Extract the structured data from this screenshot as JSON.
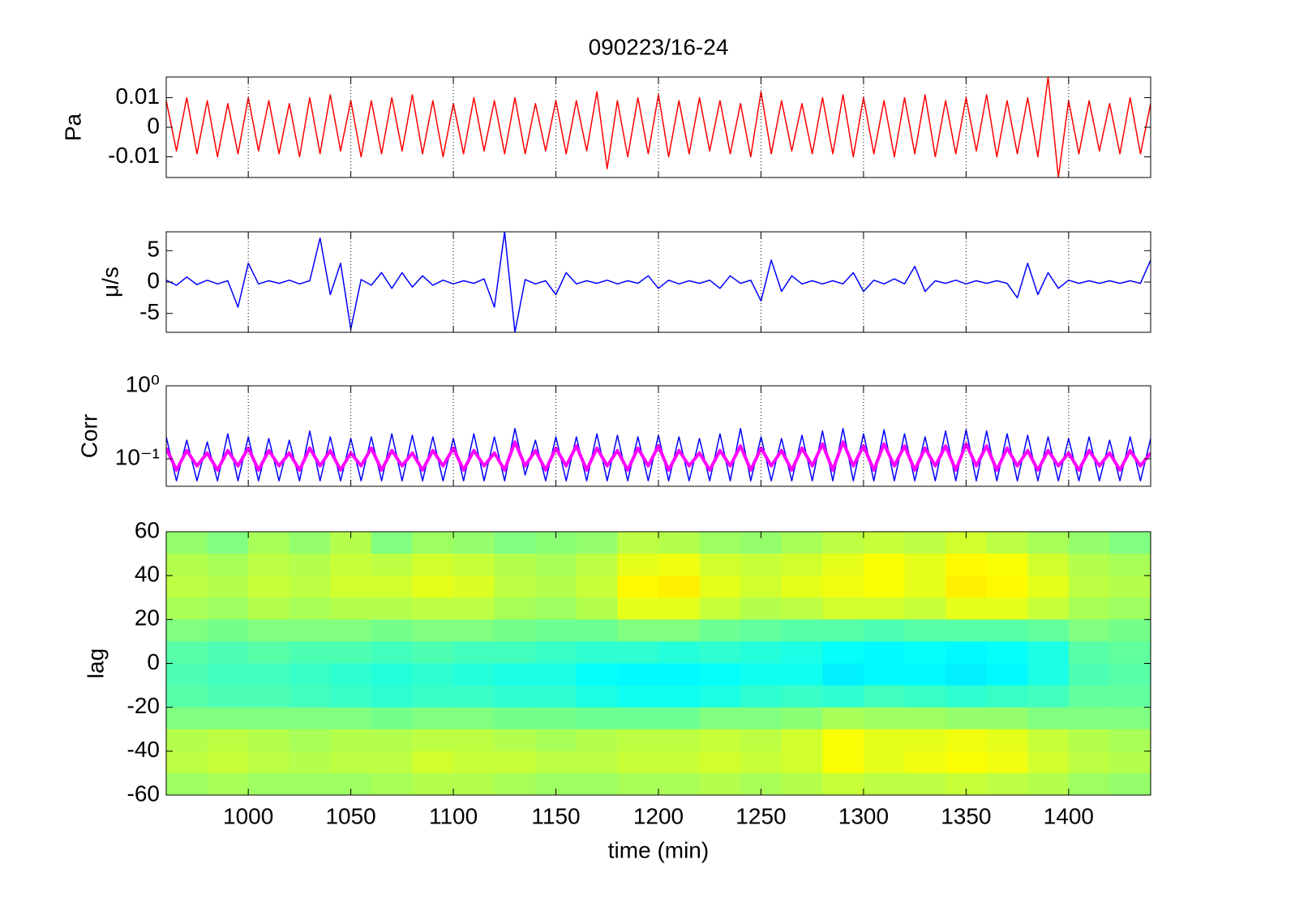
{
  "chart_data": [
    {
      "type": "line",
      "title": "090223/16-24",
      "ylabel": "Pa",
      "grid": "x",
      "xlim": [
        960,
        1440
      ],
      "xticks": [
        1000,
        1050,
        1100,
        1150,
        1200,
        1250,
        1300,
        1350,
        1400
      ],
      "ylim": [
        -0.017,
        0.017
      ],
      "yticks": [
        -0.01,
        0,
        0.01
      ],
      "x": [
        960,
        965,
        970,
        975,
        980,
        985,
        990,
        995,
        1000,
        1005,
        1010,
        1015,
        1020,
        1025,
        1030,
        1035,
        1040,
        1045,
        1050,
        1055,
        1060,
        1065,
        1070,
        1075,
        1080,
        1085,
        1090,
        1095,
        1100,
        1105,
        1110,
        1115,
        1120,
        1125,
        1130,
        1135,
        1140,
        1145,
        1150,
        1155,
        1160,
        1165,
        1170,
        1175,
        1180,
        1185,
        1190,
        1195,
        1200,
        1205,
        1210,
        1215,
        1220,
        1225,
        1230,
        1235,
        1240,
        1245,
        1250,
        1255,
        1260,
        1265,
        1270,
        1275,
        1280,
        1285,
        1290,
        1295,
        1300,
        1305,
        1310,
        1315,
        1320,
        1325,
        1330,
        1335,
        1340,
        1345,
        1350,
        1355,
        1360,
        1365,
        1370,
        1375,
        1380,
        1385,
        1390,
        1395,
        1400,
        1405,
        1410,
        1415,
        1420,
        1425,
        1430,
        1435,
        1440
      ],
      "series": [
        {
          "color": "#ff0000",
          "values": [
            0.009,
            -0.008,
            0.01,
            -0.009,
            0.009,
            -0.01,
            0.008,
            -0.009,
            0.01,
            -0.008,
            0.009,
            -0.009,
            0.008,
            -0.01,
            0.01,
            -0.009,
            0.011,
            -0.008,
            0.009,
            -0.01,
            0.009,
            -0.009,
            0.01,
            -0.008,
            0.011,
            -0.009,
            0.009,
            -0.01,
            0.008,
            -0.009,
            0.01,
            -0.008,
            0.009,
            -0.009,
            0.01,
            -0.009,
            0.008,
            -0.008,
            0.009,
            -0.009,
            0.009,
            -0.008,
            0.012,
            -0.014,
            0.009,
            -0.01,
            0.01,
            -0.009,
            0.011,
            -0.01,
            0.009,
            -0.009,
            0.01,
            -0.008,
            0.009,
            -0.009,
            0.008,
            -0.01,
            0.012,
            -0.009,
            0.009,
            -0.008,
            0.008,
            -0.009,
            0.01,
            -0.009,
            0.011,
            -0.01,
            0.01,
            -0.009,
            0.009,
            -0.01,
            0.01,
            -0.009,
            0.011,
            -0.01,
            0.009,
            -0.009,
            0.01,
            -0.008,
            0.011,
            -0.01,
            0.009,
            -0.009,
            0.01,
            -0.01,
            0.017,
            -0.017,
            0.009,
            -0.009,
            0.009,
            -0.008,
            0.008,
            -0.009,
            0.01,
            -0.009,
            0.008
          ]
        }
      ]
    },
    {
      "type": "line",
      "ylabel": "μ/s",
      "grid": "x",
      "xlim": [
        960,
        1440
      ],
      "xticks": [
        1000,
        1050,
        1100,
        1150,
        1200,
        1250,
        1300,
        1350,
        1400
      ],
      "ylim": [
        -8,
        8
      ],
      "yticks": [
        -5,
        0,
        5
      ],
      "x": [
        960,
        965,
        970,
        975,
        980,
        985,
        990,
        995,
        1000,
        1005,
        1010,
        1015,
        1020,
        1025,
        1030,
        1035,
        1040,
        1045,
        1050,
        1055,
        1060,
        1065,
        1070,
        1075,
        1080,
        1085,
        1090,
        1095,
        1100,
        1105,
        1110,
        1115,
        1120,
        1125,
        1130,
        1135,
        1140,
        1145,
        1150,
        1155,
        1160,
        1165,
        1170,
        1175,
        1180,
        1185,
        1190,
        1195,
        1200,
        1205,
        1210,
        1215,
        1220,
        1225,
        1230,
        1235,
        1240,
        1245,
        1250,
        1255,
        1260,
        1265,
        1270,
        1275,
        1280,
        1285,
        1290,
        1295,
        1300,
        1305,
        1310,
        1315,
        1320,
        1325,
        1330,
        1335,
        1340,
        1345,
        1350,
        1355,
        1360,
        1365,
        1370,
        1375,
        1380,
        1385,
        1390,
        1395,
        1400,
        1405,
        1410,
        1415,
        1420,
        1425,
        1430,
        1435,
        1440
      ],
      "series": [
        {
          "color": "#0000ff",
          "values": [
            0.3,
            -0.5,
            0.8,
            -0.4,
            0.3,
            -0.3,
            0.2,
            -4,
            3,
            -0.3,
            0.2,
            -0.2,
            0.3,
            -0.3,
            0.2,
            7,
            -2,
            3,
            -7.5,
            0.4,
            -0.5,
            1.5,
            -1,
            1.5,
            -0.8,
            1,
            -0.5,
            0.3,
            -0.3,
            0.2,
            -0.2,
            0.5,
            -4,
            8,
            -8,
            0.4,
            -0.3,
            0.2,
            -2,
            1.5,
            -0.3,
            0.2,
            -0.2,
            0.3,
            -0.3,
            0.2,
            -0.2,
            1,
            -1,
            0.3,
            -0.3,
            0.2,
            -0.2,
            0.3,
            -1,
            1,
            -0.2,
            0.3,
            -3,
            3.5,
            -1.5,
            1,
            -0.3,
            0.2,
            -0.3,
            0.2,
            -0.3,
            1.5,
            -1.5,
            0.3,
            -0.3,
            0.5,
            -0.3,
            2.5,
            -1.5,
            0.2,
            -0.2,
            0.3,
            -0.3,
            0.2,
            -0.2,
            0.2,
            -0.2,
            -2.5,
            3,
            -2,
            1.5,
            -1,
            0.3,
            -0.2,
            0.2,
            -0.2,
            0.2,
            -0.2,
            0.2,
            -0.2,
            3.5
          ]
        }
      ]
    },
    {
      "type": "line",
      "ylabel": "Corr",
      "grid": "x",
      "log_scale": "y",
      "xlim": [
        960,
        1440
      ],
      "xticks": [
        1000,
        1050,
        1100,
        1150,
        1200,
        1250,
        1300,
        1350,
        1400
      ],
      "ylim": [
        0.042,
        1
      ],
      "yticks": [
        {
          "value": 0.1,
          "label": "10⁻¹"
        },
        {
          "value": 1,
          "label": "10⁰"
        }
      ],
      "x": [
        960,
        965,
        970,
        975,
        980,
        985,
        990,
        995,
        1000,
        1005,
        1010,
        1015,
        1020,
        1025,
        1030,
        1035,
        1040,
        1045,
        1050,
        1055,
        1060,
        1065,
        1070,
        1075,
        1080,
        1085,
        1090,
        1095,
        1100,
        1105,
        1110,
        1115,
        1120,
        1125,
        1130,
        1135,
        1140,
        1145,
        1150,
        1155,
        1160,
        1165,
        1170,
        1175,
        1180,
        1185,
        1190,
        1195,
        1200,
        1205,
        1210,
        1215,
        1220,
        1225,
        1230,
        1235,
        1240,
        1245,
        1250,
        1255,
        1260,
        1265,
        1270,
        1275,
        1280,
        1285,
        1290,
        1295,
        1300,
        1305,
        1310,
        1315,
        1320,
        1325,
        1330,
        1335,
        1340,
        1345,
        1350,
        1355,
        1360,
        1365,
        1370,
        1375,
        1380,
        1385,
        1390,
        1395,
        1400,
        1405,
        1410,
        1415,
        1420,
        1425,
        1430,
        1435,
        1440
      ],
      "series": [
        {
          "color": "#0000ff",
          "values": [
            0.2,
            0.05,
            0.18,
            0.05,
            0.17,
            0.05,
            0.22,
            0.05,
            0.2,
            0.05,
            0.19,
            0.05,
            0.18,
            0.05,
            0.24,
            0.05,
            0.2,
            0.05,
            0.19,
            0.05,
            0.2,
            0.05,
            0.22,
            0.05,
            0.21,
            0.05,
            0.2,
            0.05,
            0.19,
            0.05,
            0.22,
            0.05,
            0.2,
            0.05,
            0.26,
            0.06,
            0.18,
            0.05,
            0.2,
            0.05,
            0.2,
            0.05,
            0.22,
            0.05,
            0.21,
            0.05,
            0.2,
            0.05,
            0.21,
            0.05,
            0.2,
            0.05,
            0.19,
            0.05,
            0.22,
            0.05,
            0.26,
            0.05,
            0.2,
            0.05,
            0.19,
            0.05,
            0.21,
            0.05,
            0.24,
            0.05,
            0.26,
            0.05,
            0.22,
            0.05,
            0.25,
            0.05,
            0.22,
            0.05,
            0.2,
            0.05,
            0.24,
            0.05,
            0.25,
            0.05,
            0.24,
            0.05,
            0.22,
            0.05,
            0.21,
            0.05,
            0.2,
            0.05,
            0.19,
            0.05,
            0.2,
            0.05,
            0.18,
            0.05,
            0.2,
            0.05,
            0.19
          ]
        },
        {
          "color": "#ff00ff",
          "values": [
            0.14,
            0.07,
            0.13,
            0.08,
            0.12,
            0.07,
            0.13,
            0.08,
            0.14,
            0.07,
            0.13,
            0.08,
            0.12,
            0.07,
            0.14,
            0.08,
            0.13,
            0.07,
            0.12,
            0.08,
            0.14,
            0.07,
            0.13,
            0.08,
            0.12,
            0.07,
            0.13,
            0.08,
            0.14,
            0.07,
            0.13,
            0.08,
            0.12,
            0.07,
            0.17,
            0.08,
            0.13,
            0.07,
            0.14,
            0.08,
            0.15,
            0.07,
            0.14,
            0.08,
            0.13,
            0.07,
            0.14,
            0.08,
            0.15,
            0.07,
            0.13,
            0.08,
            0.12,
            0.07,
            0.13,
            0.08,
            0.15,
            0.07,
            0.14,
            0.08,
            0.13,
            0.07,
            0.14,
            0.08,
            0.16,
            0.07,
            0.17,
            0.08,
            0.15,
            0.07,
            0.16,
            0.08,
            0.15,
            0.07,
            0.14,
            0.08,
            0.15,
            0.07,
            0.16,
            0.08,
            0.15,
            0.07,
            0.14,
            0.08,
            0.13,
            0.07,
            0.13,
            0.08,
            0.12,
            0.07,
            0.13,
            0.08,
            0.12,
            0.07,
            0.13,
            0.08,
            0.12
          ]
        }
      ]
    },
    {
      "type": "heatmap",
      "ylabel": "lag",
      "xlabel": "time (min)",
      "colormap": "jet",
      "zlim": [
        0,
        1
      ],
      "xlim": [
        960,
        1440
      ],
      "xticks": [
        1000,
        1050,
        1100,
        1150,
        1200,
        1250,
        1300,
        1350,
        1400
      ],
      "ylim": [
        -60,
        60
      ],
      "yticks": [
        -60,
        -40,
        -20,
        0,
        20,
        40,
        60
      ],
      "x": [
        960,
        980,
        1000,
        1020,
        1040,
        1060,
        1080,
        1100,
        1120,
        1140,
        1160,
        1180,
        1200,
        1220,
        1240,
        1260,
        1280,
        1300,
        1320,
        1340,
        1360,
        1380,
        1400,
        1420,
        1440
      ],
      "y": [
        60,
        50,
        40,
        30,
        20,
        10,
        0,
        -10,
        -20,
        -30,
        -40,
        -50,
        -60
      ],
      "z": [
        [
          0.52,
          0.5,
          0.54,
          0.52,
          0.55,
          0.5,
          0.53,
          0.52,
          0.5,
          0.51,
          0.52,
          0.56,
          0.55,
          0.53,
          0.52,
          0.54,
          0.56,
          0.57,
          0.56,
          0.58,
          0.56,
          0.54,
          0.52,
          0.5
        ],
        [
          0.55,
          0.54,
          0.56,
          0.55,
          0.57,
          0.56,
          0.58,
          0.57,
          0.55,
          0.54,
          0.56,
          0.6,
          0.61,
          0.58,
          0.57,
          0.58,
          0.6,
          0.62,
          0.6,
          0.63,
          0.62,
          0.58,
          0.55,
          0.54
        ],
        [
          0.56,
          0.55,
          0.57,
          0.56,
          0.58,
          0.58,
          0.6,
          0.59,
          0.56,
          0.55,
          0.57,
          0.63,
          0.64,
          0.6,
          0.58,
          0.6,
          0.61,
          0.62,
          0.6,
          0.64,
          0.63,
          0.6,
          0.56,
          0.55
        ],
        [
          0.54,
          0.53,
          0.55,
          0.54,
          0.55,
          0.55,
          0.56,
          0.56,
          0.54,
          0.53,
          0.55,
          0.6,
          0.6,
          0.57,
          0.55,
          0.56,
          0.58,
          0.58,
          0.57,
          0.6,
          0.6,
          0.57,
          0.54,
          0.53
        ],
        [
          0.5,
          0.49,
          0.5,
          0.5,
          0.5,
          0.49,
          0.5,
          0.5,
          0.49,
          0.48,
          0.48,
          0.5,
          0.5,
          0.48,
          0.47,
          0.46,
          0.46,
          0.45,
          0.46,
          0.46,
          0.46,
          0.47,
          0.5,
          0.49
        ],
        [
          0.46,
          0.45,
          0.46,
          0.45,
          0.45,
          0.44,
          0.45,
          0.44,
          0.44,
          0.43,
          0.42,
          0.42,
          0.41,
          0.42,
          0.41,
          0.4,
          0.38,
          0.37,
          0.38,
          0.37,
          0.38,
          0.4,
          0.46,
          0.47
        ],
        [
          0.45,
          0.44,
          0.44,
          0.43,
          0.42,
          0.41,
          0.42,
          0.41,
          0.4,
          0.4,
          0.38,
          0.37,
          0.37,
          0.38,
          0.39,
          0.39,
          0.36,
          0.37,
          0.37,
          0.36,
          0.37,
          0.4,
          0.45,
          0.46
        ],
        [
          0.46,
          0.45,
          0.45,
          0.44,
          0.43,
          0.42,
          0.43,
          0.43,
          0.42,
          0.42,
          0.4,
          0.39,
          0.39,
          0.4,
          0.42,
          0.43,
          0.42,
          0.44,
          0.43,
          0.42,
          0.43,
          0.44,
          0.47,
          0.47
        ],
        [
          0.5,
          0.5,
          0.5,
          0.5,
          0.5,
          0.49,
          0.5,
          0.5,
          0.49,
          0.49,
          0.48,
          0.48,
          0.48,
          0.5,
          0.5,
          0.51,
          0.54,
          0.53,
          0.53,
          0.52,
          0.52,
          0.5,
          0.5,
          0.5
        ],
        [
          0.55,
          0.56,
          0.55,
          0.54,
          0.55,
          0.55,
          0.56,
          0.56,
          0.55,
          0.54,
          0.55,
          0.56,
          0.56,
          0.57,
          0.56,
          0.58,
          0.62,
          0.6,
          0.6,
          0.61,
          0.6,
          0.57,
          0.55,
          0.54
        ],
        [
          0.56,
          0.57,
          0.56,
          0.55,
          0.56,
          0.56,
          0.58,
          0.57,
          0.57,
          0.56,
          0.56,
          0.57,
          0.57,
          0.58,
          0.57,
          0.58,
          0.62,
          0.6,
          0.61,
          0.62,
          0.61,
          0.58,
          0.56,
          0.55
        ],
        [
          0.53,
          0.54,
          0.53,
          0.53,
          0.53,
          0.54,
          0.55,
          0.55,
          0.54,
          0.53,
          0.53,
          0.54,
          0.54,
          0.55,
          0.54,
          0.55,
          0.57,
          0.56,
          0.56,
          0.57,
          0.56,
          0.55,
          0.53,
          0.52
        ]
      ]
    }
  ]
}
